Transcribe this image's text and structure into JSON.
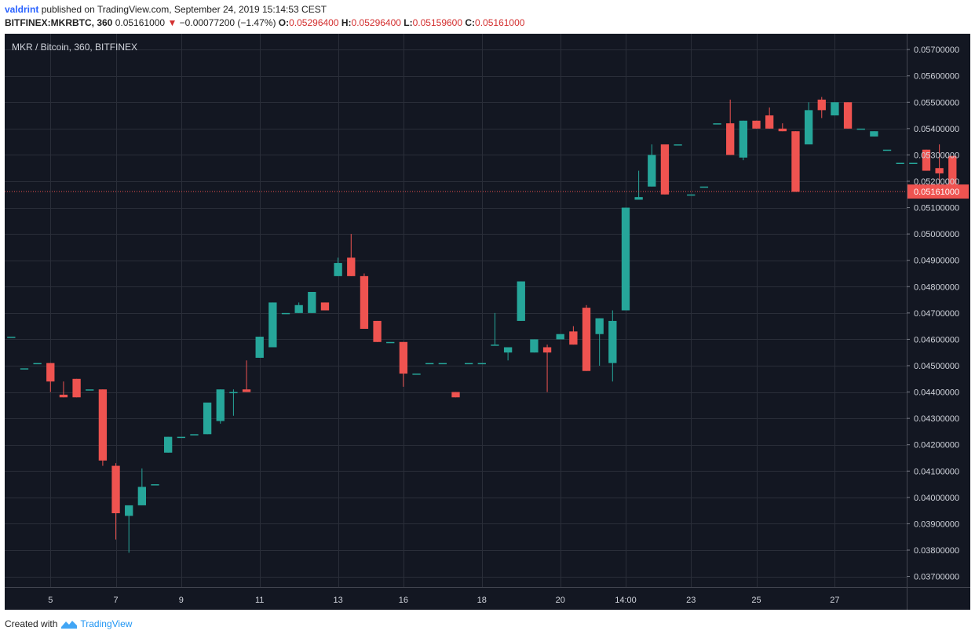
{
  "header": {
    "author": "valdrint",
    "published_text": "published on TradingView.com, September 24, 2019 15:14:53 CEST",
    "symbol": "BITFINEX:MKRBTC, 360",
    "last": "0.05161000",
    "change": "−0.00077200 (−1.47%)",
    "o_label": "O:",
    "o_value": "0.05296400",
    "h_label": "H:",
    "h_value": "0.05296400",
    "l_label": "L:",
    "l_value": "0.05159600",
    "c_label": "C:",
    "c_value": "0.05161000"
  },
  "footer": {
    "created_with": "Created with",
    "brand": "TradingView"
  },
  "colors": {
    "background": "#131722",
    "up": "#26a69a",
    "down": "#ef5350",
    "grid": "#2a2e39",
    "text": "#d1d4dc"
  },
  "chart_data": {
    "type": "candlestick",
    "title": "MKR / Bitcoin, 360, BITFINEX",
    "ylim": [
      0.0366,
      0.0576
    ],
    "xlim": [
      -0.5,
      68.5
    ],
    "y_ticks": [
      "0.05700000",
      "0.05600000",
      "0.05500000",
      "0.05400000",
      "0.05300000",
      "0.05200000",
      "0.05100000",
      "0.05000000",
      "0.04900000",
      "0.04800000",
      "0.04700000",
      "0.04600000",
      "0.04500000",
      "0.04400000",
      "0.04300000",
      "0.04200000",
      "0.04100000",
      "0.04000000",
      "0.03900000",
      "0.03800000",
      "0.03700000"
    ],
    "x_ticks": [
      {
        "i": 3,
        "label": "5"
      },
      {
        "i": 8,
        "label": "7"
      },
      {
        "i": 13,
        "label": "9"
      },
      {
        "i": 19,
        "label": "11"
      },
      {
        "i": 25,
        "label": "13"
      },
      {
        "i": 30,
        "label": "16"
      },
      {
        "i": 36,
        "label": "18"
      },
      {
        "i": 42,
        "label": "20"
      },
      {
        "i": 47,
        "label": "14:00"
      },
      {
        "i": 52,
        "label": "23"
      },
      {
        "i": 57,
        "label": "25"
      },
      {
        "i": 63,
        "label": "27"
      }
    ],
    "last_price": 0.05161,
    "last_price_label": "0.05161000",
    "candles": [
      [
        0.0461,
        0.0461,
        0.0461,
        0.0461
      ],
      [
        0.0449,
        0.0449,
        0.0449,
        0.0449
      ],
      [
        0.0451,
        0.0451,
        0.0451,
        0.0451
      ],
      [
        0.0451,
        0.0451,
        0.044,
        0.0444
      ],
      [
        0.0439,
        0.0444,
        0.0438,
        0.0438
      ],
      [
        0.0445,
        0.0445,
        0.0438,
        0.0438
      ],
      [
        0.0441,
        0.0441,
        0.0441,
        0.0441
      ],
      [
        0.0441,
        0.0441,
        0.0412,
        0.0414
      ],
      [
        0.0412,
        0.0413,
        0.0384,
        0.0394
      ],
      [
        0.0393,
        0.0397,
        0.0379,
        0.0397
      ],
      [
        0.0397,
        0.0411,
        0.0397,
        0.0404
      ],
      [
        0.0405,
        0.0405,
        0.0405,
        0.0405
      ],
      [
        0.0417,
        0.0423,
        0.0417,
        0.0423
      ],
      [
        0.0423,
        0.0423,
        0.0423,
        0.0423
      ],
      [
        0.0424,
        0.0424,
        0.0424,
        0.0424
      ],
      [
        0.0424,
        0.0436,
        0.0424,
        0.0436
      ],
      [
        0.0429,
        0.0441,
        0.0428,
        0.0441
      ],
      [
        0.044,
        0.0441,
        0.0431,
        0.044
      ],
      [
        0.0441,
        0.0452,
        0.044,
        0.044
      ],
      [
        0.0453,
        0.0461,
        0.0453,
        0.0461
      ],
      [
        0.0457,
        0.0474,
        0.0457,
        0.0474
      ],
      [
        0.047,
        0.047,
        0.047,
        0.047
      ],
      [
        0.047,
        0.0474,
        0.047,
        0.0473
      ],
      [
        0.047,
        0.0478,
        0.047,
        0.0478
      ],
      [
        0.0474,
        0.0474,
        0.0471,
        0.0471
      ],
      [
        0.0484,
        0.0491,
        0.0484,
        0.0489
      ],
      [
        0.0491,
        0.05,
        0.0484,
        0.0484
      ],
      [
        0.0484,
        0.0485,
        0.0464,
        0.0464
      ],
      [
        0.0467,
        0.0467,
        0.0459,
        0.0459
      ],
      [
        0.0459,
        0.0459,
        0.0459,
        0.0459
      ],
      [
        0.0459,
        0.0459,
        0.0442,
        0.0447
      ],
      [
        0.0447,
        0.0447,
        0.0447,
        0.0447
      ],
      [
        0.0451,
        0.0451,
        0.0451,
        0.0451
      ],
      [
        0.0451,
        0.0451,
        0.0451,
        0.0451
      ],
      [
        0.044,
        0.044,
        0.0438,
        0.0438
      ],
      [
        0.0451,
        0.0451,
        0.0451,
        0.0451
      ],
      [
        0.0451,
        0.0451,
        0.0451,
        0.0451
      ],
      [
        0.0458,
        0.047,
        0.0458,
        0.0458
      ],
      [
        0.0455,
        0.0457,
        0.0452,
        0.0457
      ],
      [
        0.0467,
        0.0482,
        0.0467,
        0.0482
      ],
      [
        0.0455,
        0.046,
        0.0455,
        0.046
      ],
      [
        0.0457,
        0.0458,
        0.044,
        0.0455
      ],
      [
        0.046,
        0.046,
        0.046,
        0.0462
      ],
      [
        0.0463,
        0.0465,
        0.0458,
        0.0458
      ],
      [
        0.0472,
        0.0473,
        0.0448,
        0.0448
      ],
      [
        0.0462,
        0.0468,
        0.045,
        0.0468
      ],
      [
        0.0451,
        0.0471,
        0.0444,
        0.0467
      ],
      [
        0.0471,
        0.051,
        0.0471,
        0.051
      ],
      [
        0.0513,
        0.0524,
        0.0513,
        0.0514
      ],
      [
        0.0518,
        0.0534,
        0.0518,
        0.053
      ],
      [
        0.0534,
        0.0534,
        0.0515,
        0.0515
      ],
      [
        0.0534,
        0.0534,
        0.0534,
        0.0534
      ],
      [
        0.0515,
        0.0515,
        0.0515,
        0.0515
      ],
      [
        0.0518,
        0.0518,
        0.0518,
        0.0518
      ],
      [
        0.0542,
        0.0542,
        0.0542,
        0.0542
      ],
      [
        0.0542,
        0.0551,
        0.053,
        0.053
      ],
      [
        0.0529,
        0.0543,
        0.0528,
        0.0543
      ],
      [
        0.0543,
        0.0543,
        0.054,
        0.054
      ],
      [
        0.0545,
        0.0548,
        0.054,
        0.054
      ],
      [
        0.054,
        0.0542,
        0.0539,
        0.0539
      ],
      [
        0.0539,
        0.0539,
        0.0516,
        0.0516
      ],
      [
        0.0534,
        0.055,
        0.0534,
        0.0547
      ],
      [
        0.0551,
        0.0552,
        0.0544,
        0.0547
      ],
      [
        0.0545,
        0.055,
        0.0545,
        0.055
      ],
      [
        0.055,
        0.055,
        0.054,
        0.054
      ],
      [
        0.054,
        0.054,
        0.054,
        0.054
      ],
      [
        0.0537,
        0.0539,
        0.0537,
        0.0539
      ],
      [
        0.0532,
        0.0532,
        0.0532,
        0.0532
      ],
      [
        0.0527,
        0.0527,
        0.0527,
        0.0527
      ],
      [
        0.0527,
        0.0527,
        0.0527,
        0.0527
      ],
      [
        0.0532,
        0.0532,
        0.0524,
        0.0524
      ],
      [
        0.0525,
        0.0534,
        0.0517,
        0.0523
      ],
      [
        0.05296,
        0.05296,
        0.051596,
        0.05161
      ]
    ]
  }
}
